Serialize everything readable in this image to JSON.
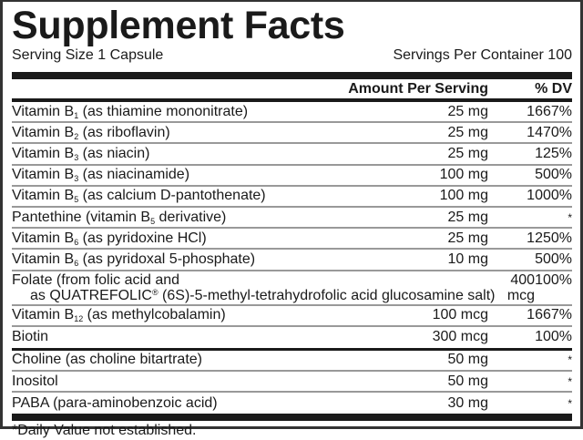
{
  "title": "Supplement Facts",
  "serving_size": "Serving Size 1 Capsule",
  "servings_per_container": "Servings Per Container 100",
  "headers": {
    "amount": "Amount Per Serving",
    "dv": "% DV"
  },
  "rows": [
    {
      "pre": "Vitamin B",
      "sub": "1",
      "name": " (as thiamine mononitrate)",
      "amount": "25 mg",
      "dv": "1667%"
    },
    {
      "pre": "Vitamin B",
      "sub": "2",
      "name": " (as riboflavin)",
      "amount": "25 mg",
      "dv": "1470%"
    },
    {
      "pre": "Vitamin B",
      "sub": "3",
      "name": " (as niacin)",
      "amount": "25 mg",
      "dv": "125%"
    },
    {
      "pre": "Vitamin B",
      "sub": "3",
      "name": " (as niacinamide)",
      "amount": "100 mg",
      "dv": "500%"
    },
    {
      "pre": "Vitamin B",
      "sub": "5",
      "name": " (as calcium D-pantothenate)",
      "amount": "100 mg",
      "dv": "1000%"
    },
    {
      "pre": "Pantethine (vitamin B",
      "sub": "5",
      "name": " derivative)",
      "amount": "25 mg",
      "dv": "*"
    },
    {
      "pre": "Vitamin B",
      "sub": "6",
      "name": " (as pyridoxine HCl)",
      "amount": "25 mg",
      "dv": "1250%"
    },
    {
      "pre": "Vitamin B",
      "sub": "6",
      "name": " (as pyridoxal 5-phosphate)",
      "amount": "10 mg",
      "dv": "500%"
    }
  ],
  "folate": {
    "line1": "Folate (from folic acid and",
    "line2a": "as QUATREFOLIC",
    "reg": "®",
    "line2b": " (6S)-5-methyl-tetrahydrofolic acid glucosamine salt)",
    "amount": "400 mcg",
    "dv": "100%"
  },
  "rows2": [
    {
      "pre": "Vitamin B",
      "sub": "12",
      "name": " (as methylcobalamin)",
      "amount": "100 mcg",
      "dv": "1667%"
    },
    {
      "pre": "Biotin",
      "sub": "",
      "name": "",
      "amount": "300 mcg",
      "dv": "100%"
    }
  ],
  "rows3": [
    {
      "name": "Choline (as choline bitartrate)",
      "amount": "50 mg",
      "dv": "*"
    },
    {
      "name": "Inositol",
      "amount": "50 mg",
      "dv": "*"
    },
    {
      "name": "PABA (para-aminobenzoic acid)",
      "amount": "30 mg",
      "dv": "*"
    }
  ],
  "footnote": "*Daily Value not established."
}
